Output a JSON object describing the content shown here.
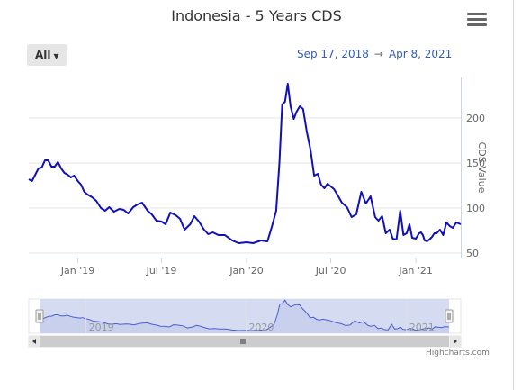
{
  "header": {
    "title": "Indonesia - 5 Years CDS",
    "menu_icon": "hamburger-menu-icon"
  },
  "range_selector": {
    "selected": "All",
    "from": "Sep 17, 2018",
    "arrow": "→",
    "to": "Apr 8, 2021"
  },
  "credits": "Highcharts.com",
  "colors": {
    "line": "#1010b8",
    "navigator_fill": "#d0d8ef",
    "navigator_line": "#4a5fd0"
  },
  "chart_data": {
    "type": "line",
    "title": "Indonesia - 5 Years CDS",
    "ylabel": "CDS Value",
    "xlabel": "",
    "x_ticks": [
      "Jan '19",
      "Jul '19",
      "Jan '20",
      "Jul '20",
      "Jan '21"
    ],
    "y_ticks": [
      50,
      100,
      150,
      200
    ],
    "ylim": [
      45,
      245
    ],
    "xlim": [
      "2018-09-17",
      "2021-04-08"
    ],
    "grid": true,
    "legend": "none",
    "navigator_labels": [
      "2019",
      "2020",
      "2021"
    ],
    "series": [
      {
        "x": [
          "2018-09-17",
          "2018-09-24",
          "2018-10-01",
          "2018-10-08",
          "2018-10-15",
          "2018-10-22",
          "2018-10-29",
          "2018-11-05",
          "2018-11-12",
          "2018-11-19",
          "2018-11-26",
          "2018-12-03",
          "2018-12-10",
          "2018-12-17",
          "2018-12-24",
          "2019-01-01",
          "2019-01-08",
          "2019-01-15",
          "2019-01-22",
          "2019-02-01",
          "2019-02-10",
          "2019-02-20",
          "2019-03-01",
          "2019-03-10",
          "2019-03-20",
          "2019-04-01",
          "2019-04-10",
          "2019-04-20",
          "2019-05-01",
          "2019-05-10",
          "2019-05-20",
          "2019-06-01",
          "2019-06-10",
          "2019-06-20",
          "2019-07-01",
          "2019-07-10",
          "2019-07-20",
          "2019-08-01",
          "2019-08-10",
          "2019-08-20",
          "2019-09-01",
          "2019-09-10",
          "2019-09-20",
          "2019-10-01",
          "2019-10-10",
          "2019-10-20",
          "2019-11-01",
          "2019-11-15",
          "2019-12-01",
          "2019-12-15",
          "2020-01-01",
          "2020-01-15",
          "2020-02-01",
          "2020-02-15",
          "2020-02-25",
          "2020-03-05",
          "2020-03-12",
          "2020-03-18",
          "2020-03-24",
          "2020-03-30",
          "2020-04-05",
          "2020-04-12",
          "2020-04-18",
          "2020-04-25",
          "2020-05-02",
          "2020-05-10",
          "2020-05-18",
          "2020-05-26",
          "2020-06-03",
          "2020-06-10",
          "2020-06-17",
          "2020-06-24",
          "2020-07-01",
          "2020-07-08",
          "2020-07-15",
          "2020-07-25",
          "2020-08-05",
          "2020-08-15",
          "2020-08-25",
          "2020-09-05",
          "2020-09-15",
          "2020-09-25",
          "2020-10-05",
          "2020-10-12",
          "2020-10-20",
          "2020-10-28",
          "2020-11-05",
          "2020-11-12",
          "2020-11-20",
          "2020-11-28",
          "2020-12-05",
          "2020-12-12",
          "2020-12-18",
          "2020-12-24",
          "2021-01-01",
          "2021-01-08",
          "2021-01-12",
          "2021-01-16",
          "2021-01-20",
          "2021-01-25",
          "2021-02-01",
          "2021-02-05",
          "2021-02-10",
          "2021-02-15",
          "2021-02-22",
          "2021-03-01",
          "2021-03-08",
          "2021-03-15",
          "2021-03-22",
          "2021-03-29",
          "2021-04-08"
        ],
        "values": [
          132,
          130,
          137,
          144,
          145,
          153,
          153,
          146,
          146,
          151,
          144,
          139,
          137,
          134,
          136,
          130,
          126,
          118,
          115,
          112,
          108,
          100,
          97,
          101,
          96,
          99,
          98,
          94,
          101,
          104,
          106,
          97,
          93,
          86,
          85,
          82,
          95,
          92,
          88,
          76,
          82,
          91,
          85,
          76,
          71,
          73,
          70,
          70,
          64,
          61,
          62,
          61,
          64,
          63,
          80,
          97,
          150,
          215,
          218,
          238,
          213,
          199,
          207,
          213,
          210,
          185,
          165,
          136,
          138,
          126,
          122,
          127,
          124,
          121,
          115,
          106,
          101,
          90,
          93,
          118,
          105,
          113,
          90,
          86,
          91,
          72,
          76,
          66,
          65,
          97,
          70,
          72,
          82,
          67,
          66,
          72,
          73,
          70,
          64,
          63,
          66,
          68,
          72,
          72,
          76,
          70,
          84,
          80,
          78,
          84,
          82
        ]
      }
    ]
  }
}
